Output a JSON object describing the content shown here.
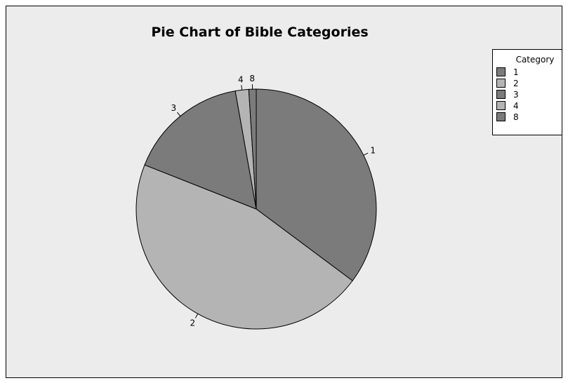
{
  "chart_data": {
    "type": "pie",
    "title": "Pie Chart of Bible Categories",
    "categories": [
      "1",
      "2",
      "3",
      "4",
      "8"
    ],
    "values": [
      35.2,
      45.8,
      16.2,
      1.8,
      1.0
    ],
    "colors": [
      "#7b7b7b",
      "#b4b4b4",
      "#7b7b7b",
      "#b4b4b4",
      "#7b7b7b"
    ],
    "legend": {
      "title": "Category",
      "placement": "top-right"
    }
  }
}
